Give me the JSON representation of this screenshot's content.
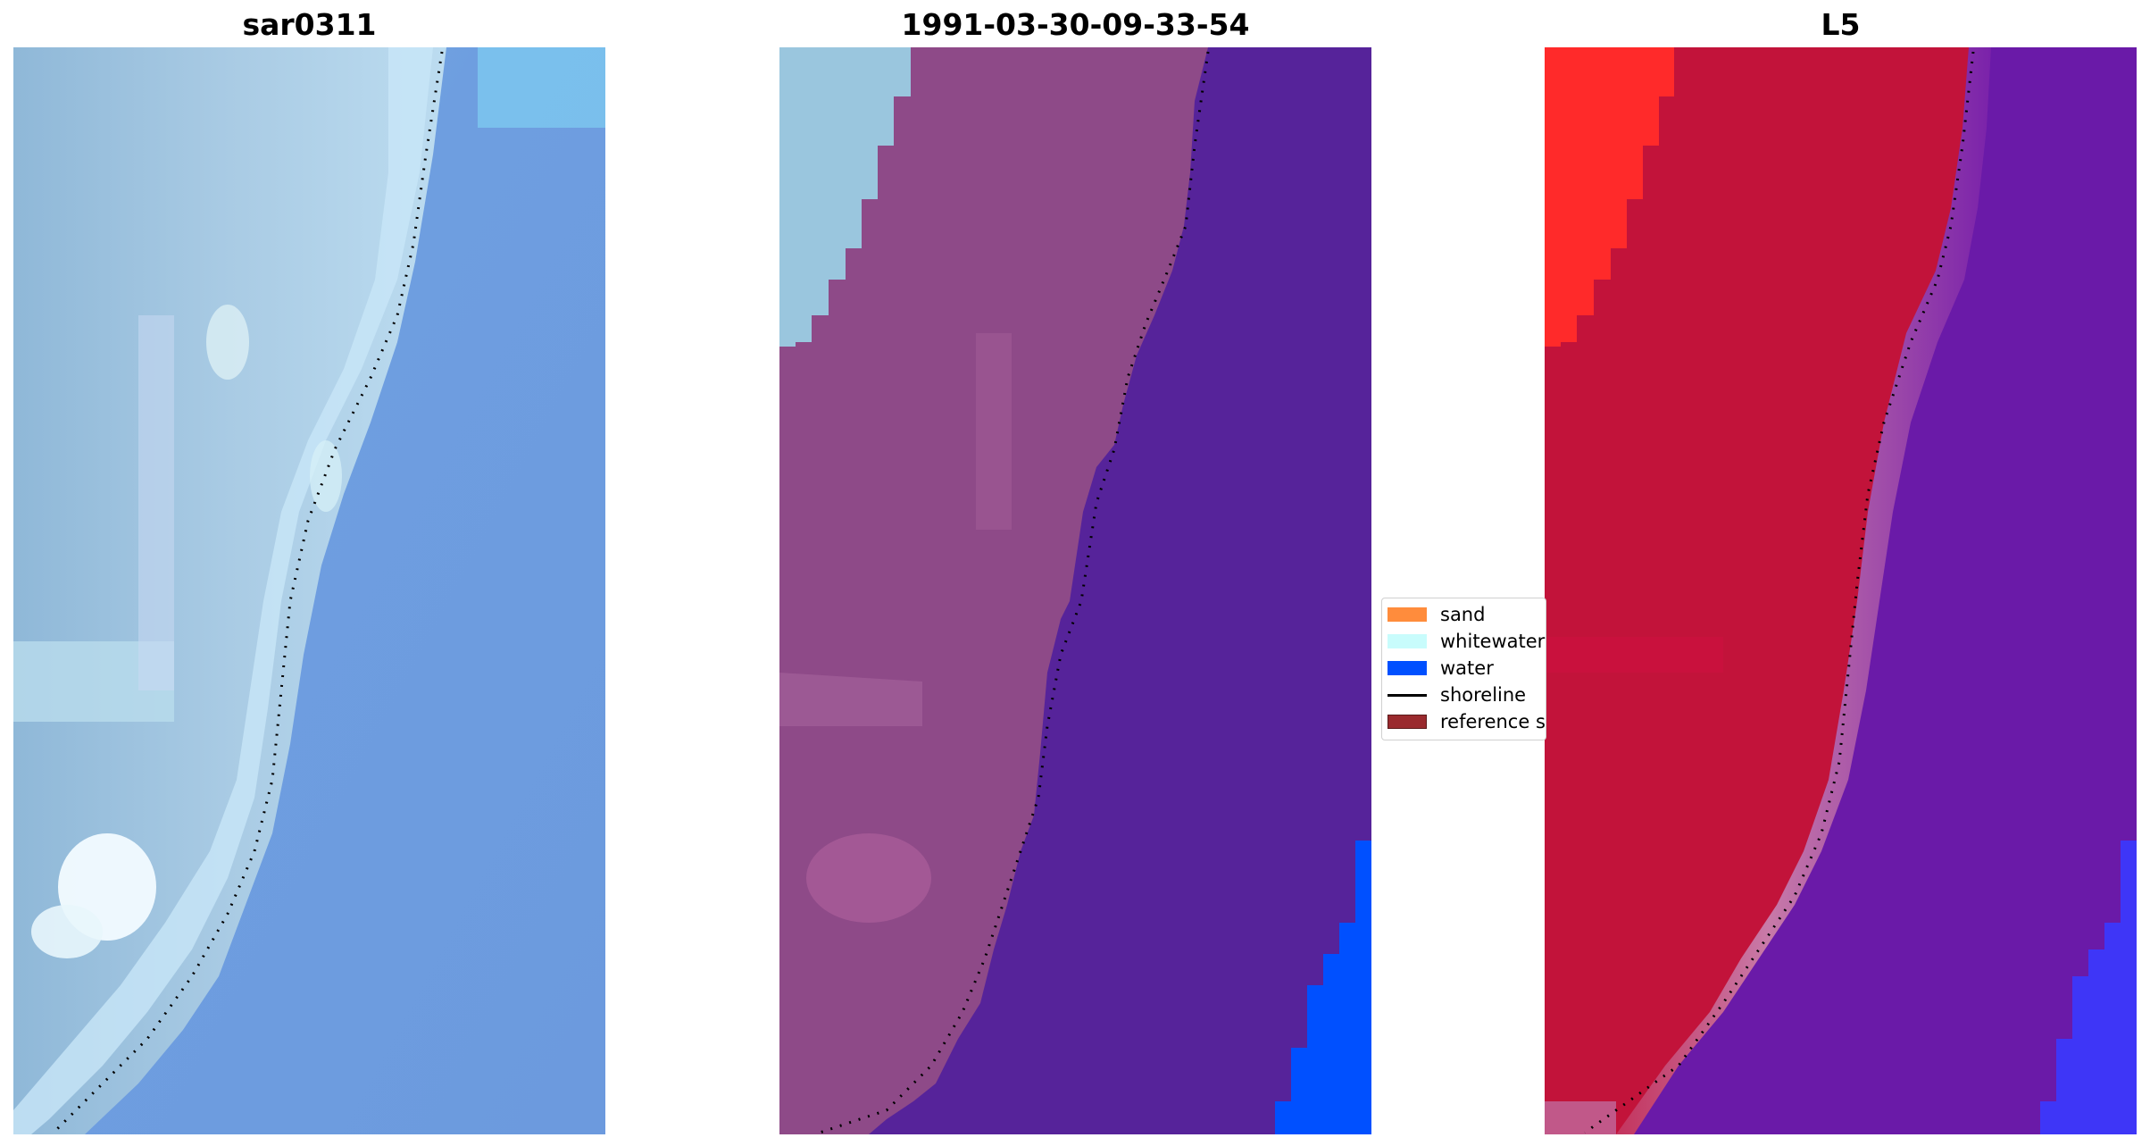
{
  "panels": [
    {
      "title": "sar0311"
    },
    {
      "title": "1991-03-30-09-33-54"
    },
    {
      "title": "L5"
    }
  ],
  "legend": {
    "items": [
      {
        "label": "sand",
        "color": "#ff8c3c"
      },
      {
        "label": "whitewater",
        "color": "#c8fcfc"
      },
      {
        "label": "water",
        "color": "#0050ff"
      },
      {
        "label": "shoreline",
        "color": "#000000"
      },
      {
        "label": "reference shoreline",
        "color": "#9a2a2e"
      }
    ]
  },
  "colors": {
    "rgb_water": "#6e9ee0",
    "rgb_beach": "#a6c8e2",
    "rgb_surf": "#e4f8fc",
    "class_land": "#8e4a88",
    "class_land_light": "#a8609e",
    "class_deep_water": "#56239a",
    "class_water": "#0050ff",
    "class_whitewater": "#9ac6de",
    "index_land": "#c2133a",
    "index_land_bright": "#ff2a2a",
    "index_water": "#6a1aa8",
    "index_transition": "#c06a9e",
    "index_blue": "#3232ff"
  }
}
